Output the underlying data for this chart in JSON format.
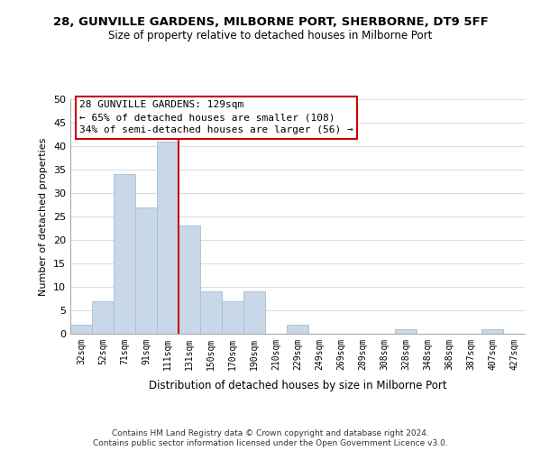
{
  "title": "28, GUNVILLE GARDENS, MILBORNE PORT, SHERBORNE, DT9 5FF",
  "subtitle": "Size of property relative to detached houses in Milborne Port",
  "xlabel": "Distribution of detached houses by size in Milborne Port",
  "ylabel": "Number of detached properties",
  "bar_color": "#c8d8e8",
  "bar_edge_color": "#a8bece",
  "categories": [
    "32sqm",
    "52sqm",
    "71sqm",
    "91sqm",
    "111sqm",
    "131sqm",
    "150sqm",
    "170sqm",
    "190sqm",
    "210sqm",
    "229sqm",
    "249sqm",
    "269sqm",
    "289sqm",
    "308sqm",
    "328sqm",
    "348sqm",
    "368sqm",
    "387sqm",
    "407sqm",
    "427sqm"
  ],
  "values": [
    2,
    7,
    34,
    27,
    41,
    23,
    9,
    7,
    9,
    0,
    2,
    0,
    0,
    0,
    0,
    1,
    0,
    0,
    0,
    1,
    0
  ],
  "ylim": [
    0,
    50
  ],
  "yticks": [
    0,
    5,
    10,
    15,
    20,
    25,
    30,
    35,
    40,
    45,
    50
  ],
  "marker_label": "28 GUNVILLE GARDENS: 129sqm",
  "marker_line_color": "#cc0000",
  "annotation_line1": "← 65% of detached houses are smaller (108)",
  "annotation_line2": "34% of semi-detached houses are larger (56) →",
  "annotation_box_color": "#ffffff",
  "annotation_box_edge": "#cc0000",
  "footer_line1": "Contains HM Land Registry data © Crown copyright and database right 2024.",
  "footer_line2": "Contains public sector information licensed under the Open Government Licence v3.0.",
  "background_color": "#ffffff",
  "grid_color": "#ccd8e0"
}
